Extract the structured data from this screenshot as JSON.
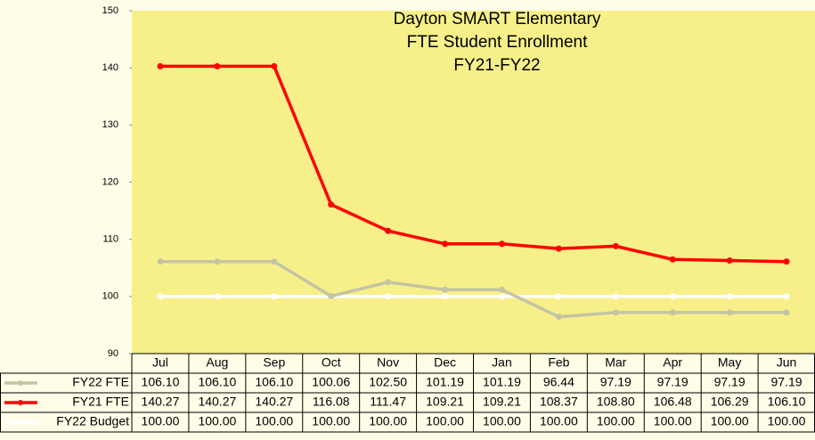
{
  "chart_data": {
    "type": "line",
    "title": [
      "Dayton SMART Elementary",
      "FTE Student Enrollment",
      "FY21-FY22"
    ],
    "categories": [
      "Jul",
      "Aug",
      "Sep",
      "Oct",
      "Nov",
      "Dec",
      "Jan",
      "Feb",
      "Mar",
      "Apr",
      "May",
      "Jun"
    ],
    "series": [
      {
        "name": "FY22 FTE",
        "color": "#c4c4a4",
        "values": [
          106.1,
          106.1,
          106.1,
          100.06,
          102.5,
          101.19,
          101.19,
          96.44,
          97.19,
          97.19,
          97.19,
          97.19
        ],
        "value_labels": [
          "106.10",
          "106.10",
          "106.10",
          "100.06",
          "102.50",
          "101.19",
          "101.19",
          "96.44",
          "97.19",
          "97.19",
          "97.19",
          "97.19"
        ]
      },
      {
        "name": "FY21 FTE",
        "color": "#ff0000",
        "values": [
          140.27,
          140.27,
          140.27,
          116.08,
          111.47,
          109.21,
          109.21,
          108.37,
          108.8,
          106.48,
          106.29,
          106.1
        ],
        "value_labels": [
          "140.27",
          "140.27",
          "140.27",
          "116.08",
          "111.47",
          "109.21",
          "109.21",
          "108.37",
          "108.80",
          "106.48",
          "106.29",
          "106.10"
        ]
      },
      {
        "name": "FY22 Budget",
        "color": "#ffffff",
        "values": [
          100,
          100,
          100,
          100,
          100,
          100,
          100,
          100,
          100,
          100,
          100,
          100
        ],
        "value_labels": [
          "100.00",
          "100.00",
          "100.00",
          "100.00",
          "100.00",
          "100.00",
          "100.00",
          "100.00",
          "100.00",
          "100.00",
          "100.00",
          "100.00"
        ]
      }
    ],
    "ylim": [
      90,
      150
    ],
    "yticks": [
      90,
      100,
      110,
      120,
      130,
      140,
      150
    ],
    "grid": false
  }
}
